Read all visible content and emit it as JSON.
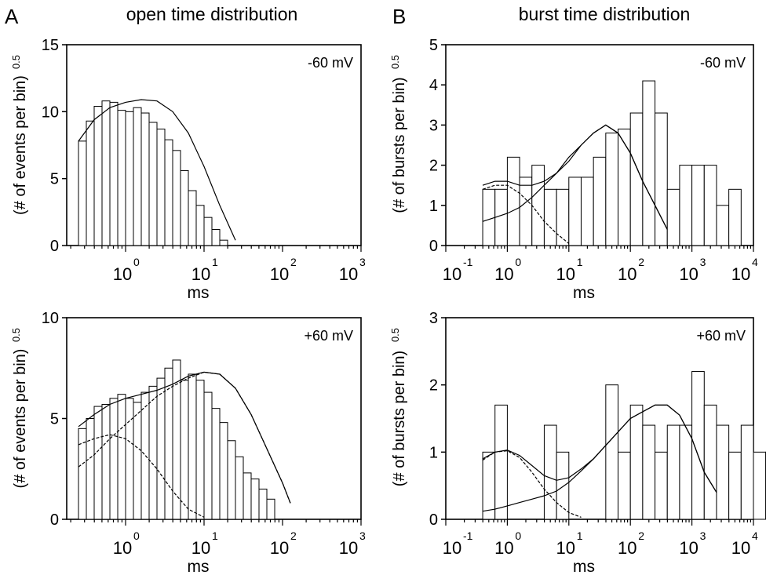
{
  "panels": {
    "A": {
      "letter": "A",
      "title": "open time distribution"
    },
    "B": {
      "letter": "B",
      "title": "burst time distribution"
    }
  },
  "chart_data": [
    {
      "id": "A-top",
      "type": "bar",
      "panel": "A",
      "annotation": "-60 mV",
      "xlabel": "ms",
      "ylabel": "(# of events per bin)",
      "ylabel_sup": "0.5",
      "xscale": "log",
      "xlim": [
        -0.75,
        3
      ],
      "xticks": [
        {
          "v": 0,
          "exp": "0"
        },
        {
          "v": 1,
          "exp": "1"
        },
        {
          "v": 2,
          "exp": "2"
        },
        {
          "v": 3,
          "exp": "3"
        }
      ],
      "ylim": [
        0,
        15
      ],
      "yticks": [
        {
          "v": 0,
          "label": "0"
        },
        {
          "v": 5,
          "label": "5"
        },
        {
          "v": 10,
          "label": "10"
        },
        {
          "v": 15,
          "label": "15"
        }
      ],
      "bin_start_log": -0.6,
      "bin_width_log": 0.1,
      "values": [
        7.8,
        9.3,
        10.4,
        10.8,
        10.7,
        10.1,
        10.0,
        10.3,
        9.9,
        9.2,
        8.7,
        7.9,
        7.1,
        5.6,
        4.1,
        3.0,
        2.1,
        1.2,
        0.4
      ],
      "fits": [
        {
          "style": "solid",
          "points": [
            [
              -0.6,
              7.8
            ],
            [
              -0.4,
              9.4
            ],
            [
              -0.2,
              10.3
            ],
            [
              0.0,
              10.7
            ],
            [
              0.2,
              10.9
            ],
            [
              0.4,
              10.8
            ],
            [
              0.6,
              10.0
            ],
            [
              0.8,
              8.4
            ],
            [
              1.0,
              5.9
            ],
            [
              1.2,
              3.0
            ],
            [
              1.4,
              0.4
            ]
          ]
        }
      ]
    },
    {
      "id": "B-top",
      "type": "bar",
      "panel": "B",
      "annotation": "-60 mV",
      "xlabel": "ms",
      "ylabel": "(# of bursts per bin)",
      "ylabel_sup": "0.5",
      "xscale": "log",
      "xlim": [
        -1,
        4
      ],
      "xticks": [
        {
          "v": -1,
          "exp": "-1"
        },
        {
          "v": 0,
          "exp": "0"
        },
        {
          "v": 1,
          "exp": "1"
        },
        {
          "v": 2,
          "exp": "2"
        },
        {
          "v": 3,
          "exp": "3"
        },
        {
          "v": 4,
          "exp": "4"
        }
      ],
      "ylim": [
        0,
        5
      ],
      "yticks": [
        {
          "v": 0,
          "label": "0"
        },
        {
          "v": 1,
          "label": "1"
        },
        {
          "v": 2,
          "label": "2"
        },
        {
          "v": 3,
          "label": "3"
        },
        {
          "v": 4,
          "label": "4"
        },
        {
          "v": 5,
          "label": "5"
        }
      ],
      "bin_start_log": -0.4,
      "bin_width_log": 0.2,
      "values": [
        1.4,
        1.4,
        2.2,
        1.7,
        2.0,
        1.4,
        1.4,
        1.7,
        1.7,
        2.2,
        2.8,
        2.9,
        3.3,
        4.1,
        3.3,
        1.4,
        2.0,
        2.0,
        2.0,
        1.0,
        1.4
      ],
      "fits": [
        {
          "style": "solid",
          "points": [
            [
              -0.4,
              1.5
            ],
            [
              -0.2,
              1.6
            ],
            [
              0.0,
              1.6
            ],
            [
              0.2,
              1.5
            ],
            [
              0.4,
              1.5
            ],
            [
              0.6,
              1.6
            ],
            [
              0.8,
              1.8
            ],
            [
              1.0,
              2.1
            ],
            [
              1.2,
              2.5
            ],
            [
              1.4,
              2.8
            ],
            [
              1.6,
              3.0
            ],
            [
              1.8,
              2.8
            ],
            [
              2.0,
              2.3
            ],
            [
              2.2,
              1.6
            ],
            [
              2.4,
              1.0
            ],
            [
              2.6,
              0.4
            ]
          ]
        },
        {
          "style": "dashed",
          "points": [
            [
              -0.4,
              1.4
            ],
            [
              -0.2,
              1.5
            ],
            [
              0.0,
              1.5
            ],
            [
              0.2,
              1.3
            ],
            [
              0.4,
              1.0
            ],
            [
              0.6,
              0.6
            ],
            [
              0.8,
              0.3
            ],
            [
              1.0,
              0.05
            ]
          ]
        },
        {
          "style": "solid",
          "points": [
            [
              -0.4,
              0.6
            ],
            [
              -0.2,
              0.7
            ],
            [
              0.0,
              0.8
            ],
            [
              0.2,
              0.95
            ],
            [
              0.4,
              1.2
            ],
            [
              0.6,
              1.5
            ],
            [
              0.8,
              1.8
            ],
            [
              1.0,
              2.2
            ],
            [
              1.2,
              2.5
            ],
            [
              1.4,
              2.8
            ],
            [
              1.6,
              3.0
            ],
            [
              1.8,
              2.8
            ],
            [
              2.0,
              2.3
            ],
            [
              2.2,
              1.6
            ],
            [
              2.4,
              1.0
            ],
            [
              2.6,
              0.4
            ]
          ]
        }
      ]
    },
    {
      "id": "A-bottom",
      "type": "bar",
      "panel": "A",
      "annotation": "+60 mV",
      "xlabel": "ms",
      "ylabel": "(# of events per bin)",
      "ylabel_sup": "0.5",
      "xscale": "log",
      "xlim": [
        -0.75,
        3
      ],
      "xticks": [
        {
          "v": 0,
          "exp": "0"
        },
        {
          "v": 1,
          "exp": "1"
        },
        {
          "v": 2,
          "exp": "2"
        },
        {
          "v": 3,
          "exp": "3"
        }
      ],
      "ylim": [
        0,
        10
      ],
      "yticks": [
        {
          "v": 0,
          "label": "0"
        },
        {
          "v": 5,
          "label": "5"
        },
        {
          "v": 10,
          "label": "10"
        }
      ],
      "bin_start_log": -0.6,
      "bin_width_log": 0.1,
      "values": [
        4.5,
        5.0,
        5.6,
        5.7,
        6.0,
        6.2,
        6.0,
        5.8,
        6.3,
        6.6,
        7.0,
        7.5,
        7.9,
        6.9,
        7.2,
        6.9,
        6.3,
        5.5,
        4.8,
        3.9,
        3.1,
        2.3,
        2.0,
        1.5,
        1.0
      ],
      "fits": [
        {
          "style": "solid",
          "points": [
            [
              -0.6,
              4.6
            ],
            [
              -0.4,
              5.2
            ],
            [
              -0.2,
              5.7
            ],
            [
              0.0,
              6.0
            ],
            [
              0.2,
              6.2
            ],
            [
              0.4,
              6.4
            ],
            [
              0.6,
              6.7
            ],
            [
              0.8,
              7.1
            ],
            [
              1.0,
              7.3
            ],
            [
              1.2,
              7.2
            ],
            [
              1.4,
              6.5
            ],
            [
              1.6,
              5.2
            ],
            [
              1.8,
              3.5
            ],
            [
              2.0,
              1.8
            ],
            [
              2.1,
              0.8
            ]
          ]
        },
        {
          "style": "dashed",
          "points": [
            [
              -0.6,
              3.7
            ],
            [
              -0.4,
              4.0
            ],
            [
              -0.2,
              4.2
            ],
            [
              0.0,
              4.0
            ],
            [
              0.2,
              3.4
            ],
            [
              0.4,
              2.5
            ],
            [
              0.6,
              1.4
            ],
            [
              0.8,
              0.5
            ],
            [
              1.0,
              0.1
            ]
          ]
        },
        {
          "style": "dashed",
          "points": [
            [
              -0.6,
              2.6
            ],
            [
              -0.4,
              3.2
            ],
            [
              -0.2,
              4.0
            ],
            [
              0.0,
              4.7
            ],
            [
              0.2,
              5.4
            ],
            [
              0.4,
              6.1
            ],
            [
              0.6,
              6.6
            ],
            [
              0.8,
              7.0
            ],
            [
              1.0,
              7.3
            ],
            [
              1.2,
              7.2
            ],
            [
              1.4,
              6.5
            ],
            [
              1.6,
              5.2
            ],
            [
              1.8,
              3.5
            ],
            [
              2.0,
              1.8
            ],
            [
              2.1,
              0.8
            ]
          ]
        }
      ]
    },
    {
      "id": "B-bottom",
      "type": "bar",
      "panel": "B",
      "annotation": "+60 mV",
      "xlabel": "ms",
      "ylabel": "(# of bursts per bin)",
      "ylabel_sup": "0.5",
      "xscale": "log",
      "xlim": [
        -1,
        4
      ],
      "xticks": [
        {
          "v": -1,
          "exp": "-1"
        },
        {
          "v": 0,
          "exp": "0"
        },
        {
          "v": 1,
          "exp": "1"
        },
        {
          "v": 2,
          "exp": "2"
        },
        {
          "v": 3,
          "exp": "3"
        },
        {
          "v": 4,
          "exp": "4"
        }
      ],
      "ylim": [
        0,
        3
      ],
      "yticks": [
        {
          "v": 0,
          "label": "0"
        },
        {
          "v": 1,
          "label": "1"
        },
        {
          "v": 2,
          "label": "2"
        },
        {
          "v": 3,
          "label": "3"
        }
      ],
      "bin_start_log": -0.4,
      "bin_width_log": 0.2,
      "values": [
        1.0,
        1.7,
        0,
        0,
        0,
        1.4,
        1.0,
        0,
        0,
        0,
        2.0,
        1.0,
        1.7,
        1.4,
        1.0,
        1.4,
        1.4,
        2.2,
        1.7,
        1.4,
        1.0,
        1.4,
        1.0,
        1.0
      ],
      "fits": [
        {
          "style": "solid",
          "points": [
            [
              -0.4,
              0.9
            ],
            [
              -0.2,
              1.0
            ],
            [
              0.0,
              1.03
            ],
            [
              0.2,
              0.95
            ],
            [
              0.4,
              0.8
            ],
            [
              0.6,
              0.65
            ],
            [
              0.8,
              0.58
            ],
            [
              1.0,
              0.62
            ],
            [
              1.2,
              0.75
            ],
            [
              1.4,
              0.9
            ],
            [
              1.6,
              1.1
            ],
            [
              1.8,
              1.3
            ],
            [
              2.0,
              1.5
            ],
            [
              2.2,
              1.6
            ],
            [
              2.4,
              1.7
            ],
            [
              2.6,
              1.7
            ],
            [
              2.8,
              1.55
            ],
            [
              3.0,
              1.2
            ],
            [
              3.2,
              0.7
            ],
            [
              3.4,
              0.4
            ]
          ]
        },
        {
          "style": "dashed",
          "points": [
            [
              -0.4,
              0.88
            ],
            [
              -0.2,
              1.0
            ],
            [
              0.0,
              1.02
            ],
            [
              0.2,
              0.92
            ],
            [
              0.4,
              0.7
            ],
            [
              0.6,
              0.45
            ],
            [
              0.8,
              0.25
            ],
            [
              1.0,
              0.1
            ],
            [
              1.2,
              0.03
            ]
          ]
        },
        {
          "style": "solid",
          "points": [
            [
              -0.4,
              0.12
            ],
            [
              -0.2,
              0.15
            ],
            [
              0.0,
              0.2
            ],
            [
              0.2,
              0.25
            ],
            [
              0.4,
              0.3
            ],
            [
              0.6,
              0.35
            ],
            [
              0.8,
              0.42
            ],
            [
              1.0,
              0.55
            ],
            [
              1.2,
              0.72
            ],
            [
              1.4,
              0.9
            ],
            [
              1.6,
              1.1
            ],
            [
              1.8,
              1.3
            ],
            [
              2.0,
              1.5
            ],
            [
              2.2,
              1.6
            ],
            [
              2.4,
              1.7
            ],
            [
              2.6,
              1.7
            ],
            [
              2.8,
              1.55
            ],
            [
              3.0,
              1.2
            ],
            [
              3.2,
              0.7
            ],
            [
              3.4,
              0.4
            ]
          ]
        }
      ]
    }
  ]
}
